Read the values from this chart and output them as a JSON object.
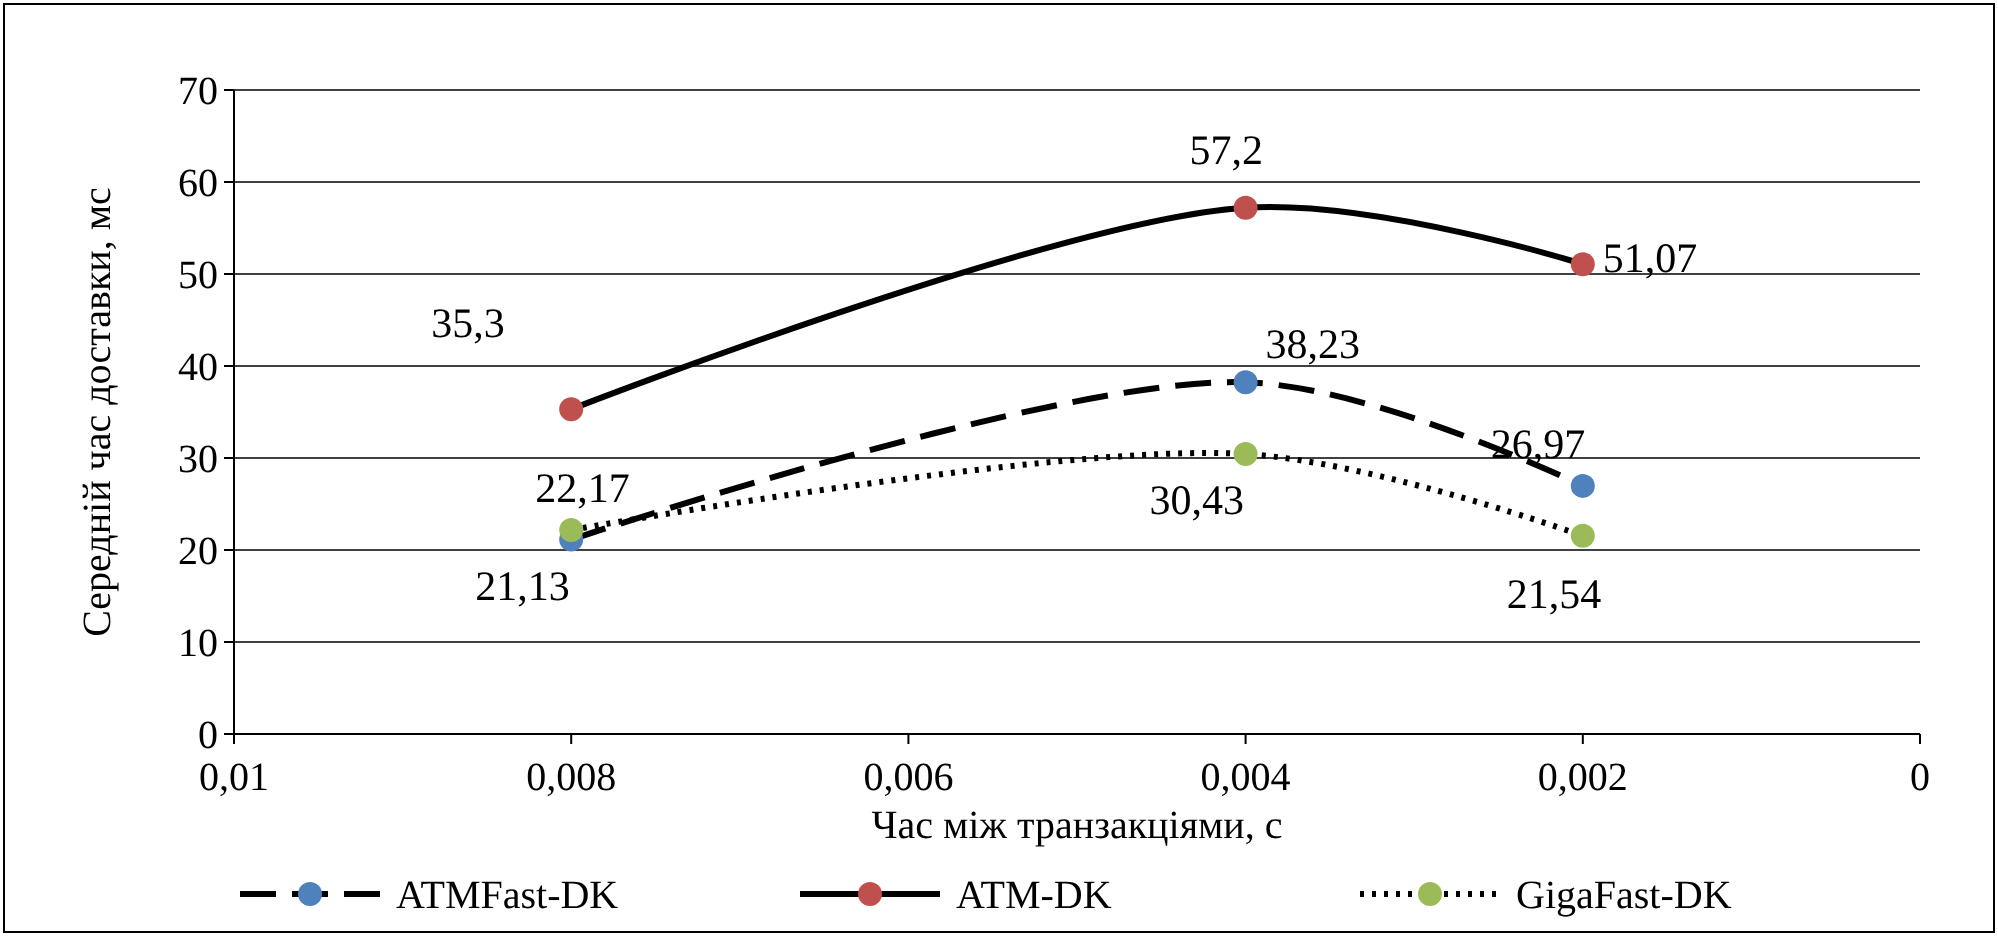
{
  "chart_data": {
    "type": "line",
    "xlabel": "Час між транзакціями, с",
    "ylabel": "Середній час доставки, мс",
    "xlim": [
      0.01,
      0
    ],
    "xticks": [
      {
        "value": 0.01,
        "label": "0,01"
      },
      {
        "value": 0.008,
        "label": "0,008"
      },
      {
        "value": 0.006,
        "label": "0,006"
      },
      {
        "value": 0.004,
        "label": "0,004"
      },
      {
        "value": 0.002,
        "label": "0,002"
      },
      0
    ],
    "ylim": [
      0,
      70
    ],
    "yticks": [
      0,
      10,
      20,
      30,
      40,
      50,
      60,
      70
    ],
    "grid": "y",
    "legend": "bottom",
    "marker": "circle",
    "x": [
      0.008,
      0.004,
      0.002
    ],
    "series": [
      {
        "name": "ATMFast-DK",
        "color": "#4f81bd",
        "line_style": "dashed",
        "values": [
          21.13,
          38.23,
          26.97
        ],
        "value_labels": [
          "21,13",
          "38,23",
          "26,97"
        ]
      },
      {
        "name": "ATM-DK",
        "color": "#c0504d",
        "line_style": "solid",
        "values": [
          35.3,
          57.2,
          51.07
        ],
        "value_labels": [
          "35,3",
          "57,2",
          "51,07"
        ]
      },
      {
        "name": "GigaFast-DK",
        "color": "#9bbb59",
        "line_style": "dotted",
        "values": [
          22.17,
          30.43,
          21.54
        ],
        "value_labels": [
          "22,17",
          "30,43",
          "21,54"
        ]
      }
    ]
  }
}
